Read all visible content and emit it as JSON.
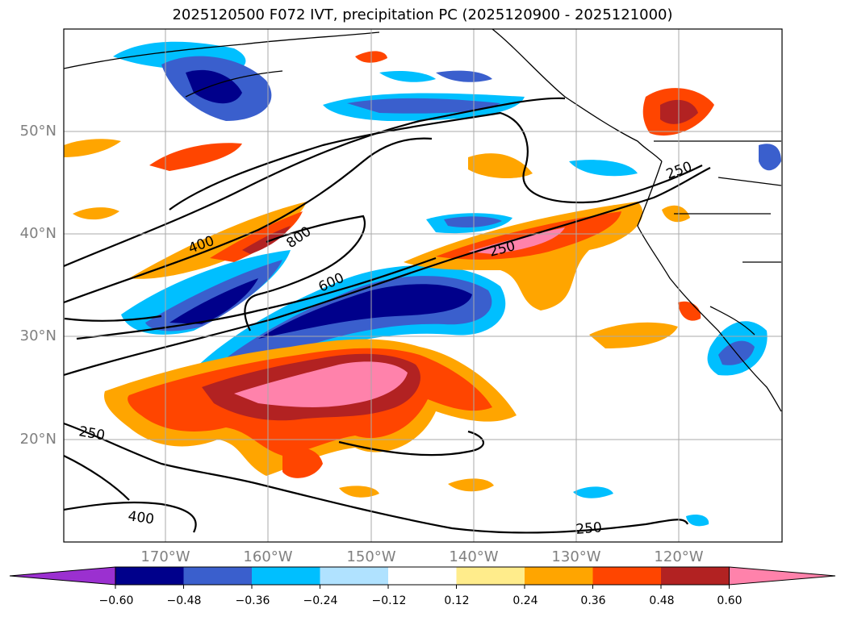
{
  "title": "2025120500 F072 IVT, precipitation PC (2025120900 - 2025121000)",
  "lat_labels": [
    "50°N",
    "40°N",
    "30°N",
    "20°N"
  ],
  "lon_labels": [
    "170°W",
    "160°W",
    "150°W",
    "140°W",
    "130°W",
    "120°W"
  ],
  "contour_labels": [
    "400",
    "800",
    "600",
    "250",
    "250",
    "250",
    "400",
    "250"
  ],
  "colorbar": {
    "ticks": [
      "−0.60",
      "−0.48",
      "−0.36",
      "−0.24",
      "−0.12",
      "0.12",
      "0.24",
      "0.36",
      "0.48",
      "0.60"
    ],
    "colors": [
      "#9b30d0",
      "#00008b",
      "#3a5fcd",
      "#00bfff",
      "#b0e2ff",
      "#ffffff",
      "#ffec8b",
      "#ffa500",
      "#ff4500",
      "#b22222",
      "#ff82ab"
    ]
  }
}
